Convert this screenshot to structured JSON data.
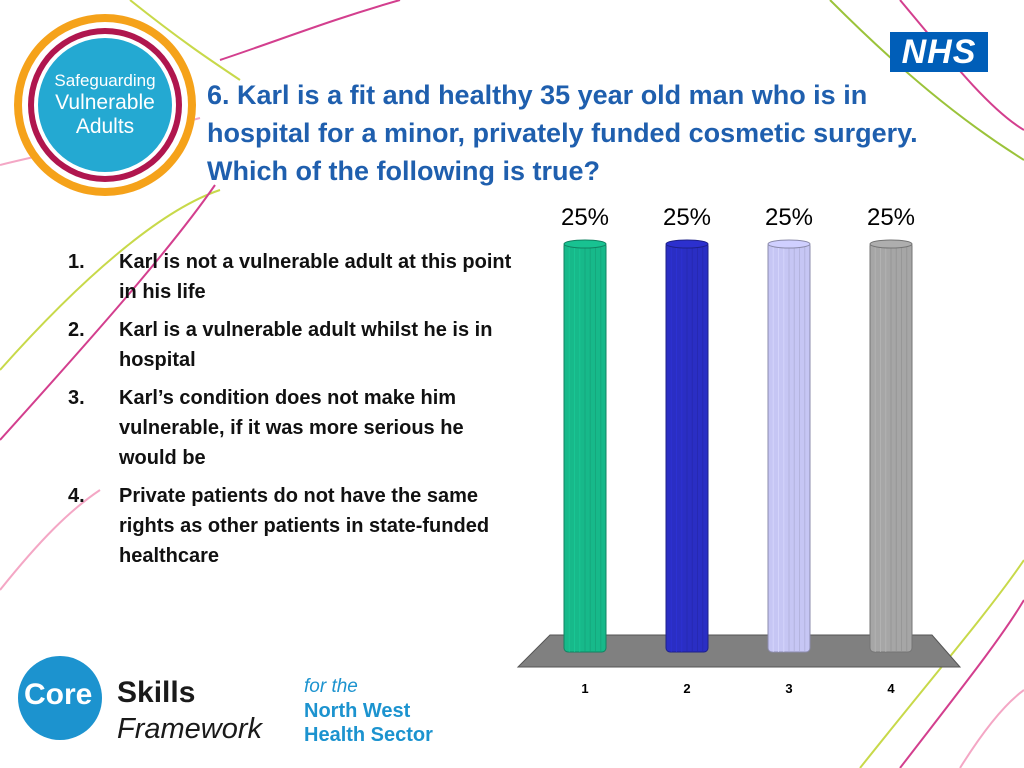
{
  "logo_left": {
    "line1": "Safeguarding",
    "line2": "Vulnerable",
    "line3": "Adults"
  },
  "logo_right": "NHS",
  "question": "6. Karl is a fit and healthy 35 year old man who is in hospital for a minor, privately funded cosmetic surgery.  Which of the following is true?",
  "answers": [
    {
      "num": "1.",
      "text": "Karl is not a vulnerable adult at this point in his life"
    },
    {
      "num": "2.",
      "text": "Karl is a vulnerable adult whilst he is in hospital"
    },
    {
      "num": "3.",
      "text": "Karl’s condition does not make him vulnerable, if it was more serious he would be"
    },
    {
      "num": "4.",
      "text": "Private patients do not have the same rights as other patients in state-funded healthcare"
    }
  ],
  "chart_data": {
    "type": "bar",
    "categories": [
      "1",
      "2",
      "3",
      "4"
    ],
    "values": [
      25,
      25,
      25,
      25
    ],
    "labels": [
      "25%",
      "25%",
      "25%",
      "25%"
    ],
    "colors": [
      "#17b98a",
      "#2a2ec4",
      "#c6c6f4",
      "#a6a6a6"
    ],
    "ylim": [
      0,
      25
    ],
    "grid": false,
    "title": "",
    "xlabel": "",
    "ylabel": ""
  },
  "footer": {
    "core": "Core",
    "skills": "Skills",
    "framework": "Framework",
    "for_the": "for the",
    "north_west": "North West",
    "health_sector": "Health Sector"
  }
}
